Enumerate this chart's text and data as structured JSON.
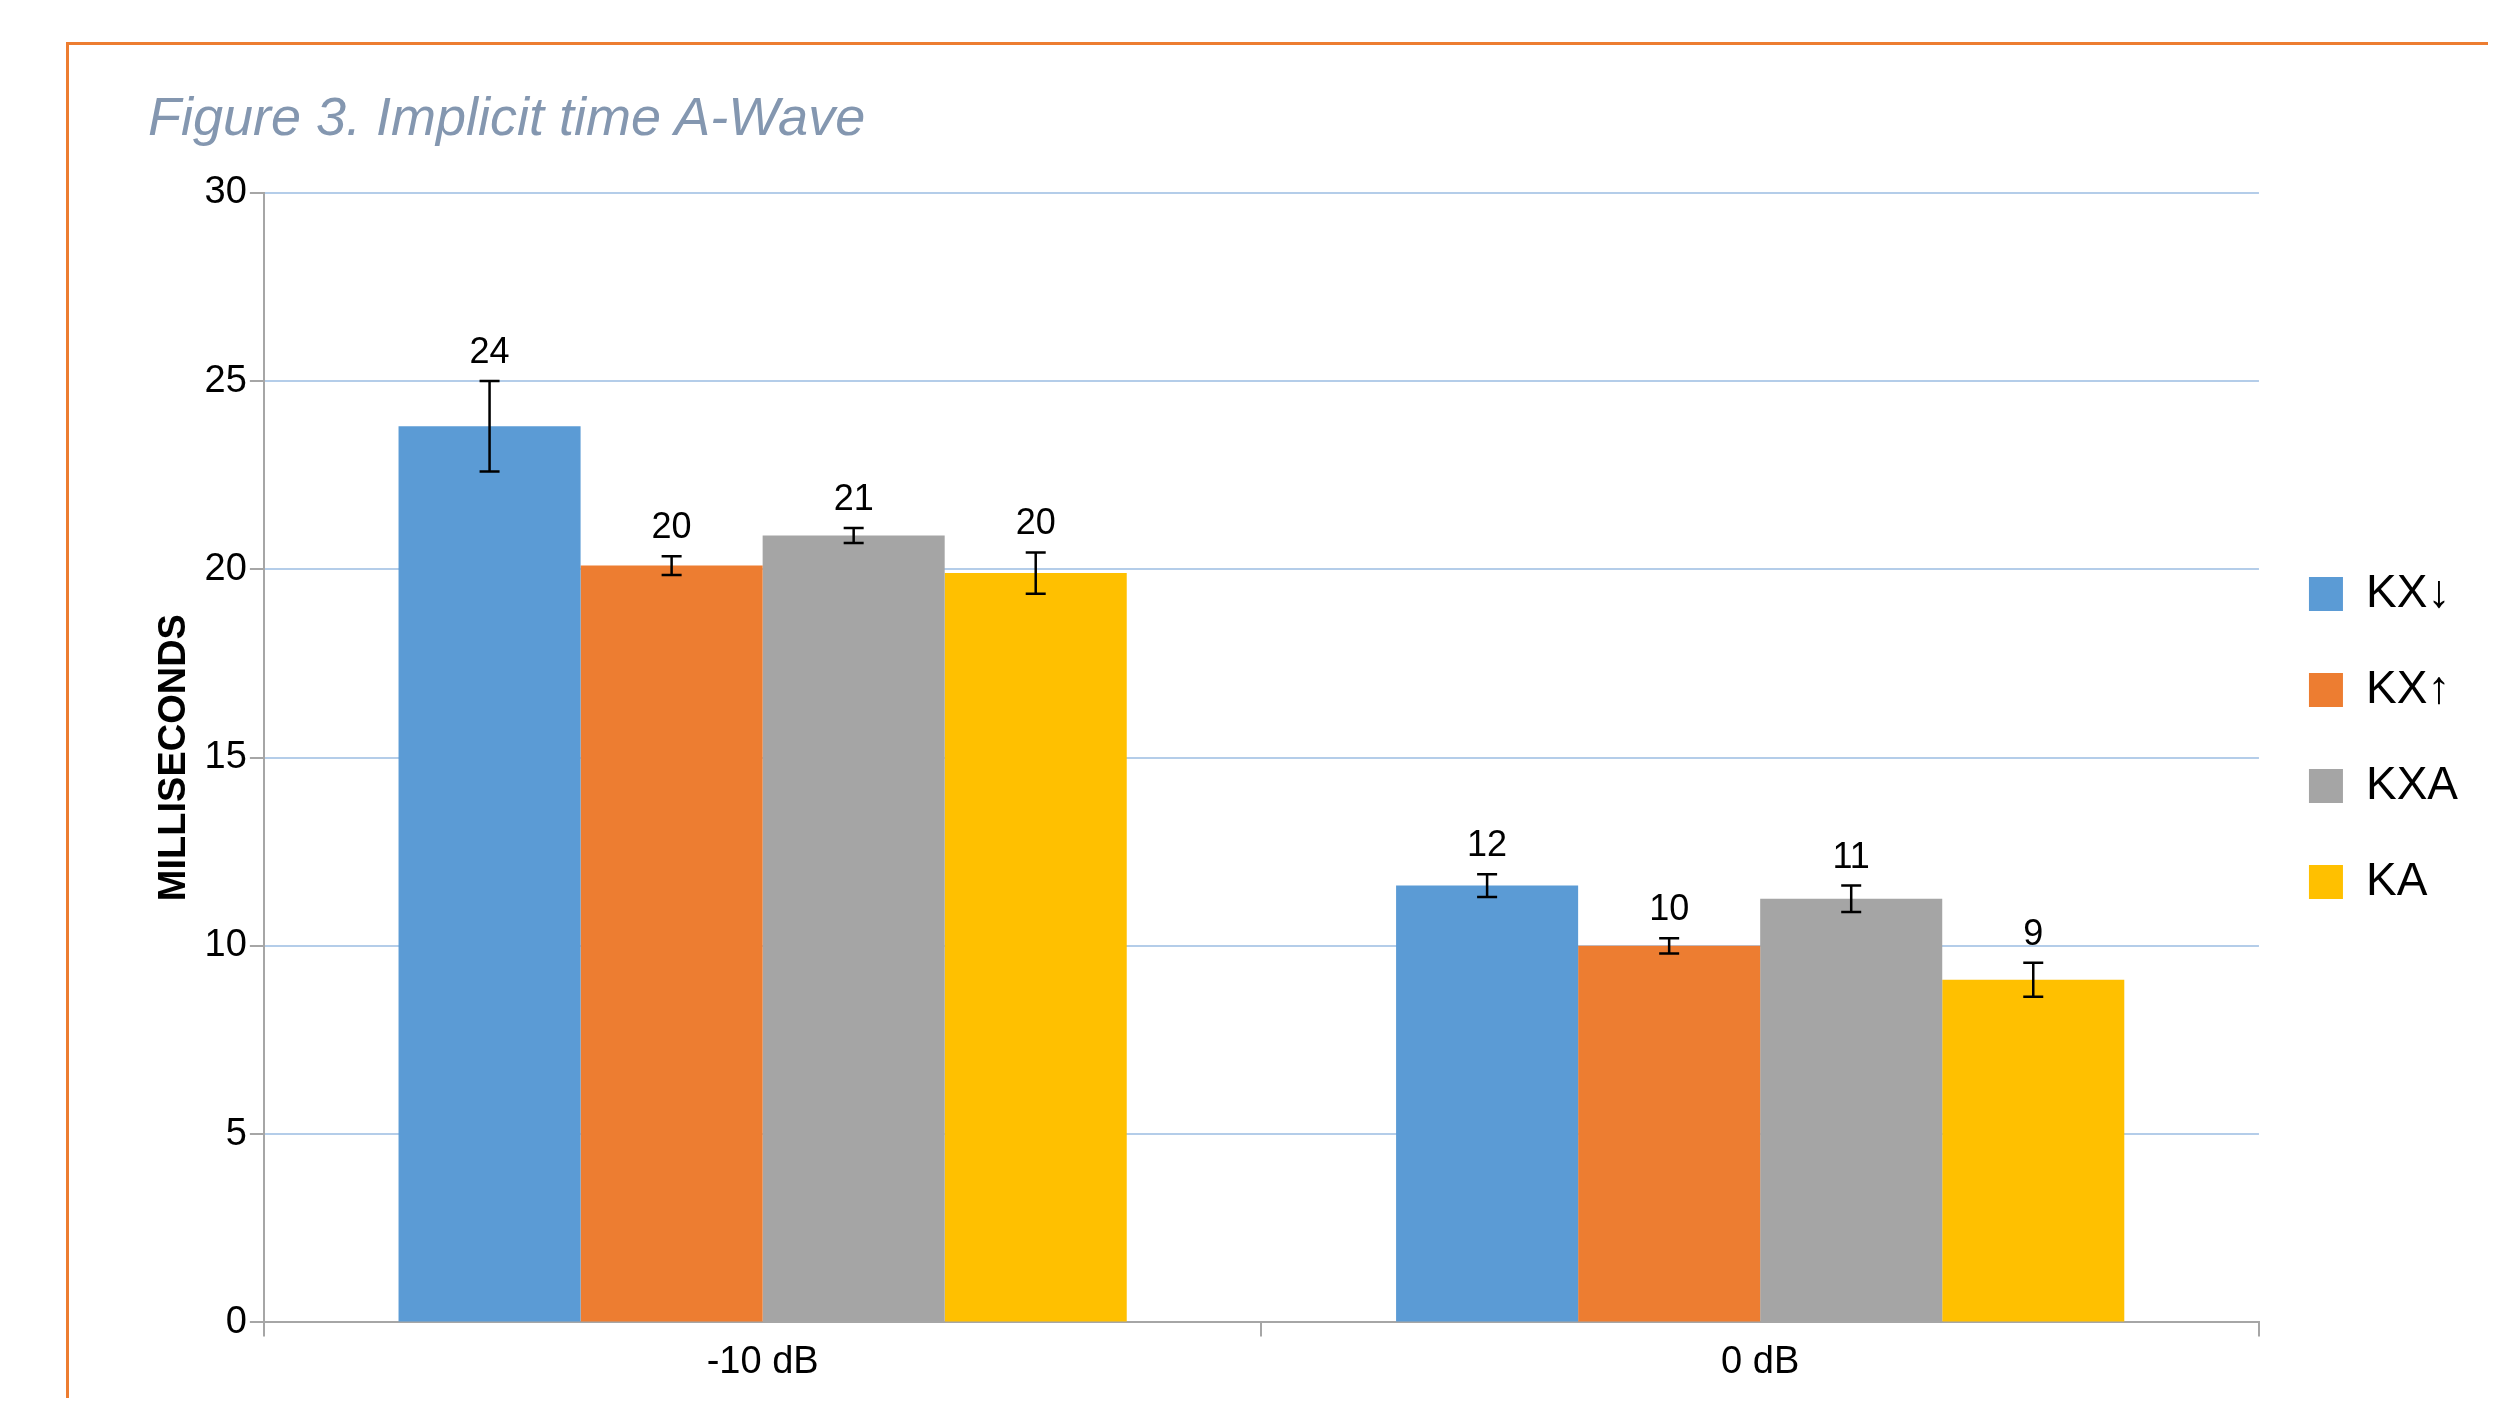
{
  "chart_data": {
    "type": "bar",
    "title": "Figure 3. Implicit time A-Wave",
    "ylabel": "MILLISECONDS",
    "categories": [
      "-10 dB",
      "0 dB"
    ],
    "series": [
      {
        "name": "KX↓",
        "color": "#5b9bd5",
        "values": [
          23.8,
          11.6
        ],
        "errors": [
          1.2,
          0.3
        ],
        "value_labels": [
          "24",
          "12"
        ]
      },
      {
        "name": "KX↑",
        "color": "#ed7d31",
        "values": [
          20.1,
          10.0
        ],
        "errors": [
          0.25,
          0.2
        ],
        "value_labels": [
          "20",
          "10"
        ]
      },
      {
        "name": "KXA",
        "color": "#a5a5a5",
        "values": [
          20.9,
          11.25
        ],
        "errors": [
          0.2,
          0.35
        ],
        "value_labels": [
          "21",
          "11"
        ]
      },
      {
        "name": "KA",
        "color": "#ffc000",
        "values": [
          19.9,
          9.1
        ],
        "errors": [
          0.55,
          0.45
        ],
        "value_labels": [
          "20",
          "9"
        ]
      }
    ],
    "ylim": [
      0,
      30
    ],
    "yticks": [
      0,
      5,
      10,
      15,
      20,
      25,
      30
    ],
    "grid": "y",
    "legend": "right"
  }
}
